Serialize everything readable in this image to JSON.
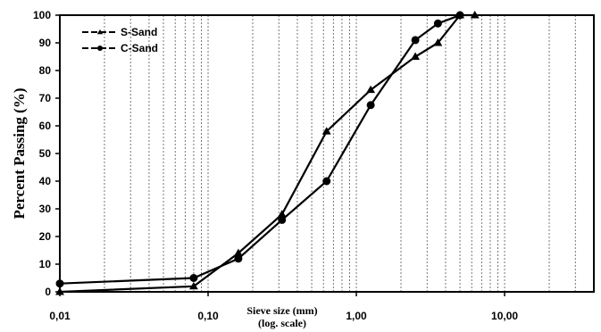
{
  "chart_data": {
    "type": "line",
    "title": "",
    "xlabel": "Sieve size (mm)",
    "xlabel_sub": "(log. scale)",
    "ylabel": "Percent Passing (%)",
    "xscale": "log",
    "xlim": [
      0.01,
      40
    ],
    "ylim": [
      0,
      100
    ],
    "x_tick_values": [
      0.01,
      0.1,
      1,
      10
    ],
    "x_tick_labels": [
      "0,01",
      "0,10",
      "1,00",
      "10,00"
    ],
    "y_ticks": [
      0,
      10,
      20,
      30,
      40,
      50,
      60,
      70,
      80,
      90,
      100
    ],
    "grid": "vertical-dashed",
    "legend_position": "top-left",
    "series": [
      {
        "name": "S-Sand",
        "marker": "triangle",
        "x": [
          0.01,
          0.08,
          0.16,
          0.315,
          0.63,
          1.25,
          2.5,
          3.55,
          5.0,
          6.3
        ],
        "y": [
          0,
          2,
          14,
          28,
          58,
          73,
          85,
          90,
          100,
          100
        ]
      },
      {
        "name": "C-Sand",
        "marker": "circle",
        "x": [
          0.01,
          0.08,
          0.16,
          0.315,
          0.63,
          1.25,
          2.5,
          3.55,
          5.0
        ],
        "y": [
          3,
          5,
          12,
          26,
          40,
          67.5,
          91,
          97,
          100
        ]
      }
    ]
  }
}
